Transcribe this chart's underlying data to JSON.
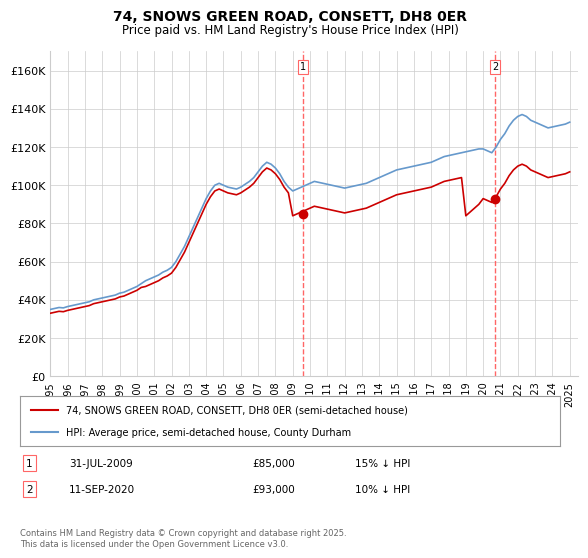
{
  "title": "74, SNOWS GREEN ROAD, CONSETT, DH8 0ER",
  "subtitle": "Price paid vs. HM Land Registry's House Price Index (HPI)",
  "ylabel": "",
  "xlabel": "",
  "ylim": [
    0,
    170000
  ],
  "yticks": [
    0,
    20000,
    40000,
    60000,
    80000,
    100000,
    120000,
    140000,
    160000
  ],
  "ytick_labels": [
    "£0",
    "£20K",
    "£40K",
    "£60K",
    "£80K",
    "£100K",
    "£120K",
    "£140K",
    "£160K"
  ],
  "xlim_start": 1995.0,
  "xlim_end": 2025.5,
  "sale1_x": 2009.58,
  "sale1_y": 85000,
  "sale1_label": "1",
  "sale1_date": "31-JUL-2009",
  "sale1_price": "£85,000",
  "sale1_hpi": "15% ↓ HPI",
  "sale2_x": 2020.7,
  "sale2_y": 93000,
  "sale2_label": "2",
  "sale2_date": "11-SEP-2020",
  "sale2_price": "£93,000",
  "sale2_hpi": "10% ↓ HPI",
  "legend_line1": "74, SNOWS GREEN ROAD, CONSETT, DH8 0ER (semi-detached house)",
  "legend_line2": "HPI: Average price, semi-detached house, County Durham",
  "footnote": "Contains HM Land Registry data © Crown copyright and database right 2025.\nThis data is licensed under the Open Government Licence v3.0.",
  "line_color_red": "#cc0000",
  "line_color_blue": "#6699cc",
  "vline_color": "#ff6666",
  "background_color": "#ffffff",
  "grid_color": "#cccccc",
  "hpi_data_x": [
    1995.0,
    1995.25,
    1995.5,
    1995.75,
    1996.0,
    1996.25,
    1996.5,
    1996.75,
    1997.0,
    1997.25,
    1997.5,
    1997.75,
    1998.0,
    1998.25,
    1998.5,
    1998.75,
    1999.0,
    1999.25,
    1999.5,
    1999.75,
    2000.0,
    2000.25,
    2000.5,
    2000.75,
    2001.0,
    2001.25,
    2001.5,
    2001.75,
    2002.0,
    2002.25,
    2002.5,
    2002.75,
    2003.0,
    2003.25,
    2003.5,
    2003.75,
    2004.0,
    2004.25,
    2004.5,
    2004.75,
    2005.0,
    2005.25,
    2005.5,
    2005.75,
    2006.0,
    2006.25,
    2006.5,
    2006.75,
    2007.0,
    2007.25,
    2007.5,
    2007.75,
    2008.0,
    2008.25,
    2008.5,
    2008.75,
    2009.0,
    2009.25,
    2009.5,
    2009.75,
    2010.0,
    2010.25,
    2010.5,
    2010.75,
    2011.0,
    2011.25,
    2011.5,
    2011.75,
    2012.0,
    2012.25,
    2012.5,
    2012.75,
    2013.0,
    2013.25,
    2013.5,
    2013.75,
    2014.0,
    2014.25,
    2014.5,
    2014.75,
    2015.0,
    2015.25,
    2015.5,
    2015.75,
    2016.0,
    2016.25,
    2016.5,
    2016.75,
    2017.0,
    2017.25,
    2017.5,
    2017.75,
    2018.0,
    2018.25,
    2018.5,
    2018.75,
    2019.0,
    2019.25,
    2019.5,
    2019.75,
    2020.0,
    2020.25,
    2020.5,
    2020.75,
    2021.0,
    2021.25,
    2021.5,
    2021.75,
    2022.0,
    2022.25,
    2022.5,
    2022.75,
    2023.0,
    2023.25,
    2023.5,
    2023.75,
    2024.0,
    2024.25,
    2024.5,
    2024.75,
    2025.0
  ],
  "hpi_data_y": [
    35000,
    35500,
    36000,
    35800,
    36500,
    37000,
    37500,
    38000,
    38500,
    39000,
    40000,
    40500,
    41000,
    41500,
    42000,
    42500,
    43500,
    44000,
    45000,
    46000,
    47000,
    48500,
    50000,
    51000,
    52000,
    53000,
    54500,
    55500,
    57000,
    60000,
    64000,
    68000,
    73000,
    78000,
    83000,
    88000,
    93000,
    97000,
    100000,
    101000,
    100000,
    99000,
    98500,
    98000,
    99000,
    100500,
    102000,
    104000,
    107000,
    110000,
    112000,
    111000,
    109000,
    106000,
    102000,
    99000,
    97000,
    98000,
    99000,
    100000,
    101000,
    102000,
    101500,
    101000,
    100500,
    100000,
    99500,
    99000,
    98500,
    99000,
    99500,
    100000,
    100500,
    101000,
    102000,
    103000,
    104000,
    105000,
    106000,
    107000,
    108000,
    108500,
    109000,
    109500,
    110000,
    110500,
    111000,
    111500,
    112000,
    113000,
    114000,
    115000,
    115500,
    116000,
    116500,
    117000,
    117500,
    118000,
    118500,
    119000,
    119000,
    118000,
    117000,
    120000,
    124000,
    127000,
    131000,
    134000,
    136000,
    137000,
    136000,
    134000,
    133000,
    132000,
    131000,
    130000,
    130500,
    131000,
    131500,
    132000,
    133000
  ],
  "price_data_x": [
    1995.0,
    1995.25,
    1995.5,
    1995.75,
    1996.0,
    1996.25,
    1996.5,
    1996.75,
    1997.0,
    1997.25,
    1997.5,
    1997.75,
    1998.0,
    1998.25,
    1998.5,
    1998.75,
    1999.0,
    1999.25,
    1999.5,
    1999.75,
    2000.0,
    2000.25,
    2000.5,
    2000.75,
    2001.0,
    2001.25,
    2001.5,
    2001.75,
    2002.0,
    2002.25,
    2002.5,
    2002.75,
    2003.0,
    2003.25,
    2003.5,
    2003.75,
    2004.0,
    2004.25,
    2004.5,
    2004.75,
    2005.0,
    2005.25,
    2005.5,
    2005.75,
    2006.0,
    2006.25,
    2006.5,
    2006.75,
    2007.0,
    2007.25,
    2007.5,
    2007.75,
    2008.0,
    2008.25,
    2008.5,
    2008.75,
    2009.0,
    2009.25,
    2009.5,
    2009.75,
    2010.0,
    2010.25,
    2010.5,
    2010.75,
    2011.0,
    2011.25,
    2011.5,
    2011.75,
    2012.0,
    2012.25,
    2012.5,
    2012.75,
    2013.0,
    2013.25,
    2013.5,
    2013.75,
    2014.0,
    2014.25,
    2014.5,
    2014.75,
    2015.0,
    2015.25,
    2015.5,
    2015.75,
    2016.0,
    2016.25,
    2016.5,
    2016.75,
    2017.0,
    2017.25,
    2017.5,
    2017.75,
    2018.0,
    2018.25,
    2018.5,
    2018.75,
    2019.0,
    2019.25,
    2019.5,
    2019.75,
    2020.0,
    2020.25,
    2020.5,
    2020.75,
    2021.0,
    2021.25,
    2021.5,
    2021.75,
    2022.0,
    2022.25,
    2022.5,
    2022.75,
    2023.0,
    2023.25,
    2023.5,
    2023.75,
    2024.0,
    2024.25,
    2024.5,
    2024.75,
    2025.0
  ],
  "price_data_y": [
    33000,
    33500,
    34000,
    33800,
    34500,
    35000,
    35500,
    36000,
    36500,
    37000,
    38000,
    38500,
    39000,
    39500,
    40000,
    40500,
    41500,
    42000,
    43000,
    44000,
    45000,
    46500,
    47000,
    48000,
    49000,
    50000,
    51500,
    52500,
    54000,
    57000,
    61000,
    65000,
    70000,
    75000,
    80000,
    85000,
    90000,
    94000,
    97000,
    98000,
    97000,
    96000,
    95500,
    95000,
    96000,
    97500,
    99000,
    101000,
    104000,
    107000,
    109000,
    108000,
    106000,
    103000,
    99000,
    96000,
    84000,
    85000,
    86000,
    87000,
    88000,
    89000,
    88500,
    88000,
    87500,
    87000,
    86500,
    86000,
    85500,
    86000,
    86500,
    87000,
    87500,
    88000,
    89000,
    90000,
    91000,
    92000,
    93000,
    94000,
    95000,
    95500,
    96000,
    96500,
    97000,
    97500,
    98000,
    98500,
    99000,
    100000,
    101000,
    102000,
    102500,
    103000,
    103500,
    104000,
    84000,
    86000,
    88000,
    90000,
    93000,
    92000,
    91000,
    94000,
    98000,
    101000,
    105000,
    108000,
    110000,
    111000,
    110000,
    108000,
    107000,
    106000,
    105000,
    104000,
    104500,
    105000,
    105500,
    106000,
    107000
  ]
}
